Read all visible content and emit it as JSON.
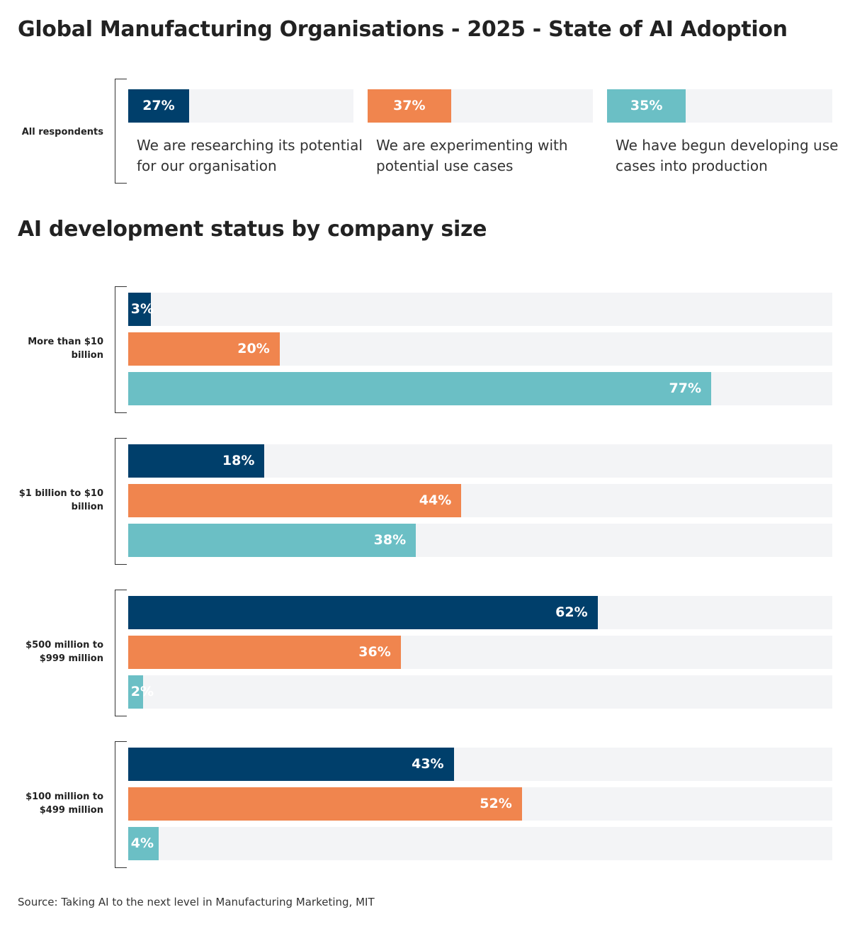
{
  "chart_data": [
    {
      "type": "bar",
      "orientation": "horizontal",
      "title": "Global Manufacturing Organisations - 2025 - State of AI Adoption",
      "group": "All respondents",
      "categories": [
        "We are researching its potential for our organisation",
        "We are experimenting with potential use cases",
        "We have begun developing use cases into production"
      ],
      "values": [
        27,
        37,
        35
      ],
      "value_labels": [
        "27%",
        "37%",
        "35%"
      ],
      "colors": [
        "#003f6b",
        "#f0854e",
        "#6bbfc5"
      ],
      "xlim": [
        0,
        100
      ]
    },
    {
      "type": "grouped-bar",
      "orientation": "horizontal",
      "title": "AI development status by company size",
      "categories": [
        "More than $10 billion",
        "$1 billion to $10 billion",
        "$500 million to $999 million",
        "$100 million to $499 million"
      ],
      "series": [
        {
          "color": "#003f6b",
          "values": [
            3,
            18,
            62,
            43
          ],
          "value_labels": [
            "3%",
            "18%",
            "62%",
            "43%"
          ]
        },
        {
          "color": "#f0854e",
          "values": [
            20,
            44,
            36,
            52
          ],
          "value_labels": [
            "20%",
            "44%",
            "36%",
            "52%"
          ]
        },
        {
          "color": "#6bbfc5",
          "values": [
            77,
            38,
            2,
            4
          ],
          "value_labels": [
            "77%",
            "38%",
            "2%",
            "4%"
          ]
        }
      ],
      "xlim": [
        0,
        93
      ]
    }
  ],
  "source": "Source: Taking AI to the next level in Manufacturing Marketing, MIT"
}
